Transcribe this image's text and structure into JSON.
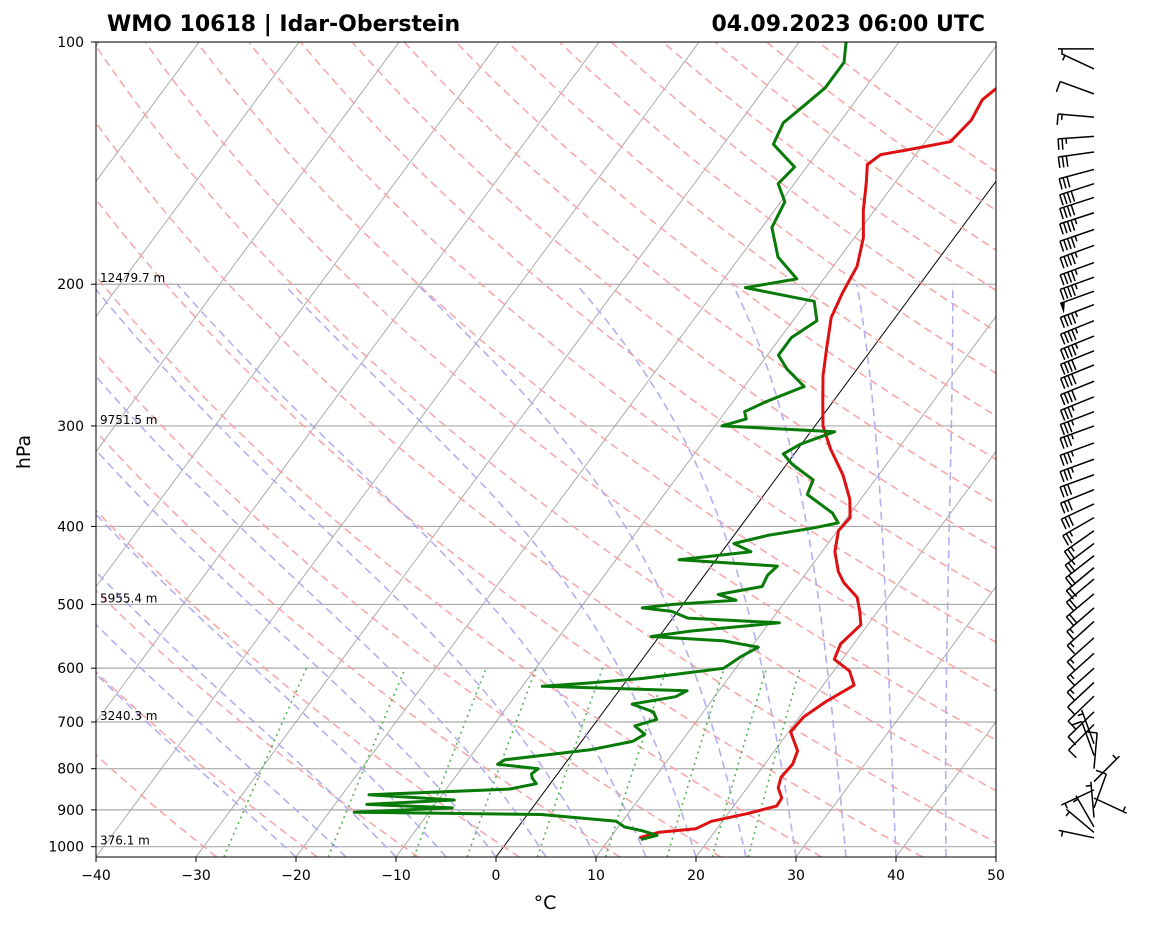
{
  "header": {
    "station": "WMO 10618 | Idar-Oberstein",
    "datetime": "04.09.2023 06:00 UTC"
  },
  "chart_data": {
    "type": "line",
    "diagram": "skew-t log-p",
    "xlabel": "°C",
    "ylabel": "hPa",
    "xlim": [
      -40,
      50
    ],
    "ylim": [
      1030,
      100
    ],
    "y_scale": "log",
    "x_ticks": [
      -40,
      -30,
      -20,
      -10,
      0,
      10,
      20,
      30,
      40,
      50
    ],
    "y_ticks": [
      100,
      200,
      300,
      400,
      500,
      600,
      700,
      800,
      900,
      1000
    ],
    "isobar_grid": true,
    "height_labels": [
      {
        "p": 1000,
        "text": "376.1 m"
      },
      {
        "p": 700,
        "text": "3240.3 m"
      },
      {
        "p": 500,
        "text": "5955.4 m"
      },
      {
        "p": 300,
        "text": "9751.5 m"
      },
      {
        "p": 200,
        "text": "12479.7 m"
      }
    ],
    "colors": {
      "temperature": "#dd1111",
      "dewpoint": "#087a08",
      "dry_adiabat": "#f7a0a0",
      "moist_adiabat": "#a8a8f0",
      "mixing_ratio": "#44aa44",
      "isotherm": "#999999"
    },
    "series": [
      {
        "key": "temperature",
        "points": [
          [
            975,
            12.9
          ],
          [
            960,
            14.4
          ],
          [
            950,
            17.9
          ],
          [
            930,
            18.9
          ],
          [
            910,
            21.9
          ],
          [
            890,
            24.3
          ],
          [
            870,
            24.2
          ],
          [
            845,
            23.1
          ],
          [
            820,
            22.6
          ],
          [
            790,
            22.8
          ],
          [
            760,
            22.3
          ],
          [
            720,
            20.2
          ],
          [
            690,
            20.4
          ],
          [
            660,
            21.5
          ],
          [
            630,
            23.1
          ],
          [
            605,
            21.6
          ],
          [
            585,
            19.2
          ],
          [
            560,
            18.7
          ],
          [
            530,
            19.3
          ],
          [
            510,
            18.2
          ],
          [
            490,
            16.9
          ],
          [
            470,
            14.5
          ],
          [
            455,
            13.1
          ],
          [
            430,
            11.3
          ],
          [
            405,
            10.1
          ],
          [
            390,
            10.3
          ],
          [
            370,
            8.9
          ],
          [
            345,
            6.4
          ],
          [
            320,
            3.2
          ],
          [
            300,
            0.8
          ],
          [
            280,
            -1.0
          ],
          [
            260,
            -2.9
          ],
          [
            240,
            -4.6
          ],
          [
            220,
            -6.4
          ],
          [
            205,
            -7.1
          ],
          [
            190,
            -7.6
          ],
          [
            175,
            -9.1
          ],
          [
            162,
            -11.1
          ],
          [
            150,
            -12.8
          ],
          [
            142,
            -14.1
          ],
          [
            138,
            -13.5
          ],
          [
            136,
            -11.0
          ],
          [
            133,
            -7.5
          ],
          [
            125,
            -7.0
          ],
          [
            118,
            -7.4
          ],
          [
            112,
            -6.5
          ],
          [
            107,
            -3.8
          ],
          [
            103,
            -0.7
          ],
          [
            100,
            2.0
          ]
        ]
      },
      {
        "key": "dewpoint",
        "points": [
          [
            980,
            13.2
          ],
          [
            968,
            14.5
          ],
          [
            955,
            12.6
          ],
          [
            945,
            10.6
          ],
          [
            930,
            9.4
          ],
          [
            912,
            1.4
          ],
          [
            906,
            -17.5
          ],
          [
            895,
            -8.0
          ],
          [
            886,
            -16.8
          ],
          [
            875,
            -8.4
          ],
          [
            862,
            -17.3
          ],
          [
            848,
            -3.7
          ],
          [
            835,
            -1.4
          ],
          [
            822,
            -2.2
          ],
          [
            812,
            -2.6
          ],
          [
            800,
            -2.3
          ],
          [
            790,
            -6.7
          ],
          [
            780,
            -6.3
          ],
          [
            758,
            1.5
          ],
          [
            740,
            5.1
          ],
          [
            725,
            5.8
          ],
          [
            708,
            4.2
          ],
          [
            695,
            5.9
          ],
          [
            680,
            5.0
          ],
          [
            665,
            2.3
          ],
          [
            651,
            6.1
          ],
          [
            640,
            6.8
          ],
          [
            632,
            -8.0
          ],
          [
            626,
            -3.6
          ],
          [
            618,
            1.4
          ],
          [
            600,
            8.8
          ],
          [
            580,
            9.7
          ],
          [
            565,
            10.7
          ],
          [
            555,
            6.8
          ],
          [
            548,
            -0.8
          ],
          [
            540,
            2.6
          ],
          [
            527,
            11.0
          ],
          [
            520,
            1.5
          ],
          [
            510,
            -0.6
          ],
          [
            505,
            -3.8
          ],
          [
            500,
            -1.0
          ],
          [
            494,
            5.0
          ],
          [
            486,
            2.8
          ],
          [
            475,
            6.6
          ],
          [
            460,
            6.3
          ],
          [
            448,
            6.6
          ],
          [
            440,
            -3.7
          ],
          [
            430,
            2.9
          ],
          [
            420,
            0.6
          ],
          [
            410,
            3.5
          ],
          [
            402,
            7.3
          ],
          [
            396,
            9.5
          ],
          [
            385,
            8.2
          ],
          [
            365,
            4.3
          ],
          [
            350,
            3.8
          ],
          [
            335,
            0.6
          ],
          [
            325,
            -1.1
          ],
          [
            316,
            -0.1
          ],
          [
            305,
            2.4
          ],
          [
            300,
            -9.3
          ],
          [
            294,
            -7.4
          ],
          [
            288,
            -8.1
          ],
          [
            280,
            -6.7
          ],
          [
            268,
            -4.0
          ],
          [
            255,
            -7.0
          ],
          [
            245,
            -8.9
          ],
          [
            233,
            -8.9
          ],
          [
            222,
            -7.6
          ],
          [
            210,
            -9.3
          ],
          [
            202,
            -17.2
          ],
          [
            197,
            -12.7
          ],
          [
            185,
            -16.2
          ],
          [
            170,
            -19.0
          ],
          [
            158,
            -19.6
          ],
          [
            150,
            -21.6
          ],
          [
            143,
            -21.2
          ],
          [
            134,
            -25.0
          ],
          [
            126,
            -25.6
          ],
          [
            120,
            -24.8
          ],
          [
            114,
            -24.0
          ],
          [
            106,
            -24.0
          ],
          [
            100,
            -25.3
          ]
        ]
      }
    ],
    "wind_barbs": [
      {
        "p": 975,
        "dir": 282,
        "spd": 4
      },
      {
        "p": 960,
        "dir": 310,
        "spd": 3
      },
      {
        "p": 945,
        "dir": 330,
        "spd": 4
      },
      {
        "p": 920,
        "dir": 355,
        "spd": 5
      },
      {
        "p": 895,
        "dir": 20,
        "spd": 8
      },
      {
        "p": 870,
        "dir": 115,
        "spd": 3
      },
      {
        "p": 850,
        "dir": 245,
        "spd": 5
      },
      {
        "p": 830,
        "dir": 45,
        "spd": 5
      },
      {
        "p": 800,
        "dir": 5,
        "spd": 8
      },
      {
        "p": 770,
        "dir": 340,
        "spd": 8
      },
      {
        "p": 745,
        "dir": 340,
        "spd": 5
      },
      {
        "p": 705,
        "dir": 225,
        "spd": 8
      },
      {
        "p": 680,
        "dir": 226,
        "spd": 10
      },
      {
        "p": 650,
        "dir": 226,
        "spd": 10
      },
      {
        "p": 625,
        "dir": 227,
        "spd": 12
      },
      {
        "p": 600,
        "dir": 228,
        "spd": 14
      },
      {
        "p": 575,
        "dir": 228,
        "spd": 15
      },
      {
        "p": 550,
        "dir": 228,
        "spd": 17
      },
      {
        "p": 525,
        "dir": 228,
        "spd": 17
      },
      {
        "p": 505,
        "dir": 229,
        "spd": 17
      },
      {
        "p": 485,
        "dir": 230,
        "spd": 19
      },
      {
        "p": 465,
        "dir": 230,
        "spd": 20
      },
      {
        "p": 450,
        "dir": 230,
        "spd": 21
      },
      {
        "p": 435,
        "dir": 232,
        "spd": 22
      },
      {
        "p": 420,
        "dir": 233,
        "spd": 23
      },
      {
        "p": 405,
        "dir": 235,
        "spd": 24
      },
      {
        "p": 390,
        "dir": 240,
        "spd": 26
      },
      {
        "p": 375,
        "dir": 245,
        "spd": 28
      },
      {
        "p": 360,
        "dir": 248,
        "spd": 30
      },
      {
        "p": 345,
        "dir": 250,
        "spd": 32
      },
      {
        "p": 330,
        "dir": 250,
        "spd": 33
      },
      {
        "p": 315,
        "dir": 250,
        "spd": 34
      },
      {
        "p": 300,
        "dir": 250,
        "spd": 35
      },
      {
        "p": 288,
        "dir": 249,
        "spd": 36
      },
      {
        "p": 276,
        "dir": 248,
        "spd": 37
      },
      {
        "p": 264,
        "dir": 248,
        "spd": 38
      },
      {
        "p": 252,
        "dir": 248,
        "spd": 40
      },
      {
        "p": 242,
        "dir": 248,
        "spd": 42
      },
      {
        "p": 232,
        "dir": 248,
        "spd": 44
      },
      {
        "p": 222,
        "dir": 248,
        "spd": 45
      },
      {
        "p": 212,
        "dir": 249,
        "spd": 47
      },
      {
        "p": 204,
        "dir": 250,
        "spd": 48
      },
      {
        "p": 196,
        "dir": 250,
        "spd": 47
      },
      {
        "p": 188,
        "dir": 250,
        "spd": 46
      },
      {
        "p": 179,
        "dir": 250,
        "spd": 45
      },
      {
        "p": 171,
        "dir": 251,
        "spd": 44
      },
      {
        "p": 163,
        "dir": 252,
        "spd": 43
      },
      {
        "p": 156,
        "dir": 252,
        "spd": 42
      },
      {
        "p": 150,
        "dir": 252,
        "spd": 38
      },
      {
        "p": 144,
        "dir": 255,
        "spd": 32
      },
      {
        "p": 137,
        "dir": 262,
        "spd": 30
      },
      {
        "p": 131,
        "dir": 266,
        "spd": 25
      },
      {
        "p": 124,
        "dir": 275,
        "spd": 15
      },
      {
        "p": 116,
        "dir": 290,
        "spd": 8
      },
      {
        "p": 108,
        "dir": 295,
        "spd": 5
      },
      {
        "p": 102,
        "dir": 270,
        "spd": 4
      }
    ]
  }
}
